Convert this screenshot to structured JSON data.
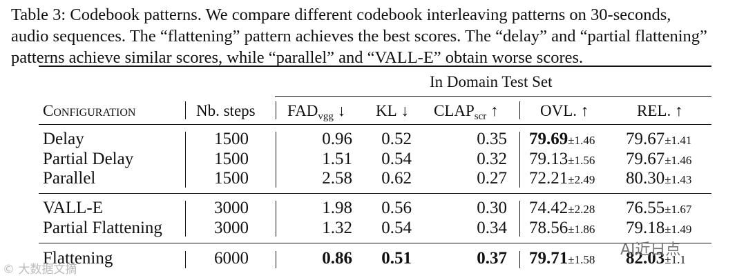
{
  "caption": [
    "Table 3: Codebook patterns. We compare different codebook interleaving patterns on 30-seconds,",
    "audio sequences. The “flattening” pattern achieves the best scores. The “delay” and “partial flattening”",
    "patterns achieve similar scores, while “parallel” and “VALL-E” obtain worse scores."
  ],
  "group_header": "In Domain Test Set",
  "headers": {
    "config": "Configuration",
    "steps": "Nb. steps",
    "fad": "FAD",
    "fad_sub": "vgg",
    "fad_arrow": "↓",
    "kl": "KL",
    "kl_arrow": "↓",
    "clap": "CLAP",
    "clap_sub": "scr",
    "clap_arrow": "↑",
    "ovl": "OVL.",
    "ovl_arrow": "↑",
    "rel": "REL.",
    "rel_arrow": "↑"
  },
  "rows": [
    {
      "config": "Delay",
      "steps": "1500",
      "fad": "0.96",
      "kl": "0.52",
      "clap": "0.35",
      "ovl": "79.69",
      "ovl_pm": "±1.46",
      "rel": "79.67",
      "rel_pm": "±1.41"
    },
    {
      "config": "Partial Delay",
      "steps": "1500",
      "fad": "1.51",
      "kl": "0.54",
      "clap": "0.32",
      "ovl": "79.13",
      "ovl_pm": "±1.56",
      "rel": "79.67",
      "rel_pm": "±1.46"
    },
    {
      "config": "Parallel",
      "steps": "1500",
      "fad": "2.58",
      "kl": "0.62",
      "clap": "0.27",
      "ovl": "72.21",
      "ovl_pm": "±2.49",
      "rel": "80.30",
      "rel_pm": "±1.43"
    },
    {
      "config": "VALL-E",
      "steps": "3000",
      "fad": "1.98",
      "kl": "0.56",
      "clap": "0.30",
      "ovl": "74.42",
      "ovl_pm": "±2.28",
      "rel": "76.55",
      "rel_pm": "±1.67"
    },
    {
      "config": "Partial Flattening",
      "steps": "3000",
      "fad": "1.32",
      "kl": "0.54",
      "clap": "0.34",
      "ovl": "78.56",
      "ovl_pm": "±1.86",
      "rel": "79.18",
      "rel_pm": "±1.49"
    },
    {
      "config": "Flattening",
      "steps": "6000",
      "fad": "0.86",
      "kl": "0.51",
      "clap": "0.37",
      "ovl": "79.71",
      "ovl_pm": "±1.58",
      "rel": "82.03",
      "rel_pm": "±1.1"
    }
  ],
  "bold_cells": [
    {
      "row": 0,
      "col": "ovl"
    },
    {
      "row": 5,
      "col": "fad"
    },
    {
      "row": 5,
      "col": "kl"
    },
    {
      "row": 5,
      "col": "clap"
    },
    {
      "row": 5,
      "col": "ovl"
    },
    {
      "row": 5,
      "col": "rel"
    }
  ],
  "watermarks": {
    "left": "© 大数据文摘",
    "right": "AI近日点"
  }
}
